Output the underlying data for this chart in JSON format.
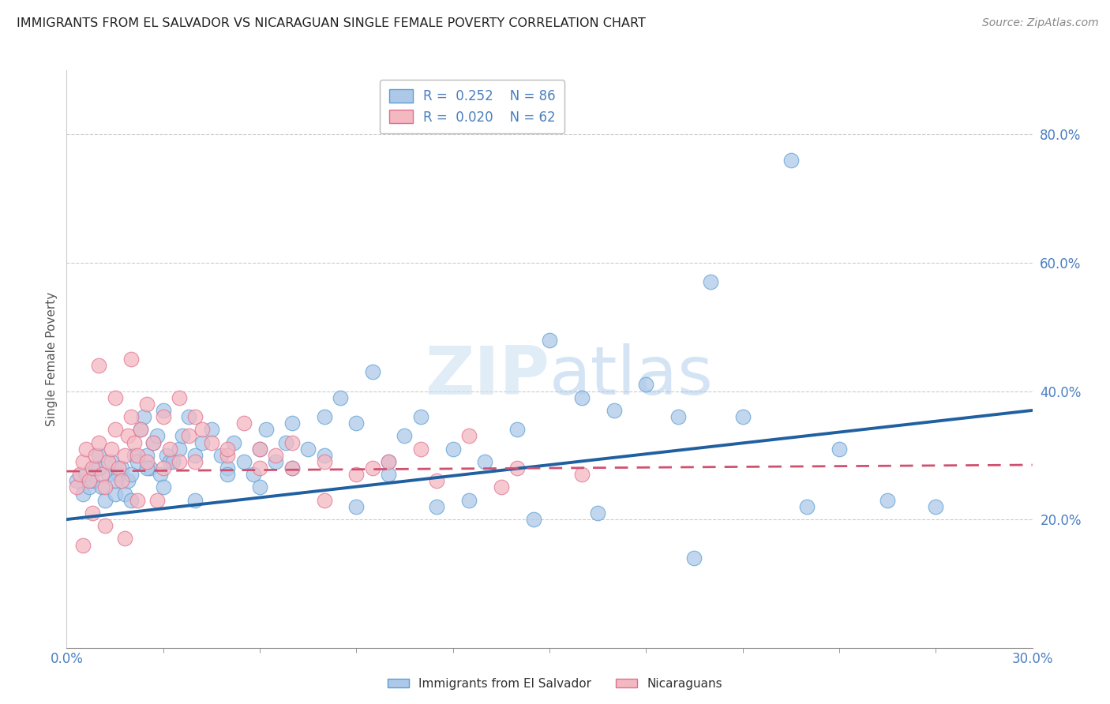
{
  "title": "IMMIGRANTS FROM EL SALVADOR VS NICARAGUAN SINGLE FEMALE POVERTY CORRELATION CHART",
  "source": "Source: ZipAtlas.com",
  "ylabel": "Single Female Poverty",
  "xlim": [
    0.0,
    30.0
  ],
  "ylim": [
    0.0,
    90.0
  ],
  "y_ticks_right": [
    20.0,
    40.0,
    60.0,
    80.0
  ],
  "color_blue_fill": "#aec9e8",
  "color_blue_edge": "#5a9fd4",
  "color_pink_fill": "#f4b8c1",
  "color_pink_edge": "#e07090",
  "color_blue_line": "#2060a0",
  "color_pink_line": "#d05070",
  "color_axis_text": "#4a7fc0",
  "color_grid": "#cccccc",
  "series1_x": [
    0.3,
    0.5,
    0.6,
    0.7,
    0.8,
    0.9,
    1.0,
    1.1,
    1.2,
    1.3,
    1.4,
    1.5,
    1.6,
    1.7,
    1.8,
    1.9,
    2.0,
    2.1,
    2.2,
    2.3,
    2.4,
    2.5,
    2.6,
    2.7,
    2.8,
    2.9,
    3.0,
    3.1,
    3.2,
    3.3,
    3.5,
    3.6,
    3.8,
    4.0,
    4.2,
    4.5,
    4.8,
    5.0,
    5.2,
    5.5,
    5.8,
    6.0,
    6.2,
    6.5,
    6.8,
    7.0,
    7.5,
    8.0,
    8.5,
    9.0,
    9.5,
    10.0,
    10.5,
    11.0,
    12.0,
    13.0,
    14.0,
    15.0,
    16.0,
    17.0,
    18.0,
    20.0,
    22.5,
    24.0,
    25.5,
    1.0,
    1.5,
    2.0,
    2.5,
    3.0,
    4.0,
    5.0,
    6.0,
    7.0,
    8.0,
    9.0,
    10.0,
    11.5,
    12.5,
    14.5,
    16.5,
    19.5,
    23.0,
    19.0,
    21.0,
    27.0
  ],
  "series1_y": [
    26,
    24,
    27,
    25,
    26,
    28,
    30,
    25,
    23,
    27,
    29,
    24,
    27,
    28,
    24,
    26,
    27,
    30,
    29,
    34,
    36,
    30,
    28,
    32,
    33,
    27,
    37,
    30,
    29,
    29,
    31,
    33,
    36,
    30,
    32,
    34,
    30,
    28,
    32,
    29,
    27,
    31,
    34,
    29,
    32,
    35,
    31,
    36,
    39,
    35,
    43,
    29,
    33,
    36,
    31,
    29,
    34,
    48,
    39,
    37,
    41,
    57,
    76,
    31,
    23,
    28,
    26,
    23,
    28,
    25,
    23,
    27,
    25,
    28,
    30,
    22,
    27,
    22,
    23,
    20,
    21,
    14,
    22,
    36,
    36,
    22
  ],
  "series2_x": [
    0.3,
    0.4,
    0.5,
    0.6,
    0.7,
    0.8,
    0.9,
    1.0,
    1.1,
    1.2,
    1.3,
    1.4,
    1.5,
    1.6,
    1.7,
    1.8,
    1.9,
    2.0,
    2.1,
    2.2,
    2.3,
    2.5,
    2.7,
    3.0,
    3.2,
    3.5,
    3.8,
    4.0,
    4.5,
    5.0,
    5.5,
    6.0,
    6.5,
    7.0,
    8.0,
    9.0,
    10.0,
    11.0,
    12.5,
    14.0,
    16.0,
    1.0,
    1.5,
    2.0,
    2.5,
    3.0,
    4.0,
    5.0,
    6.0,
    7.0,
    8.0,
    9.5,
    11.5,
    13.5,
    0.5,
    0.8,
    1.2,
    1.8,
    2.2,
    2.8,
    3.5,
    4.2
  ],
  "series2_y": [
    25,
    27,
    29,
    31,
    26,
    28,
    30,
    32,
    27,
    25,
    29,
    31,
    34,
    28,
    26,
    30,
    33,
    36,
    32,
    30,
    34,
    29,
    32,
    28,
    31,
    39,
    33,
    29,
    32,
    30,
    35,
    28,
    30,
    32,
    29,
    27,
    29,
    31,
    33,
    28,
    27,
    44,
    39,
    45,
    38,
    36,
    36,
    31,
    31,
    28,
    23,
    28,
    26,
    25,
    16,
    21,
    19,
    17,
    23,
    23,
    29,
    34
  ],
  "trendline1_x": [
    0.0,
    30.0
  ],
  "trendline1_y": [
    20.0,
    37.0
  ],
  "trendline2_x": [
    0.0,
    30.0
  ],
  "trendline2_y": [
    27.5,
    28.5
  ],
  "x_minor_ticks": [
    3,
    6,
    9,
    12,
    15,
    18,
    21,
    24,
    27
  ]
}
